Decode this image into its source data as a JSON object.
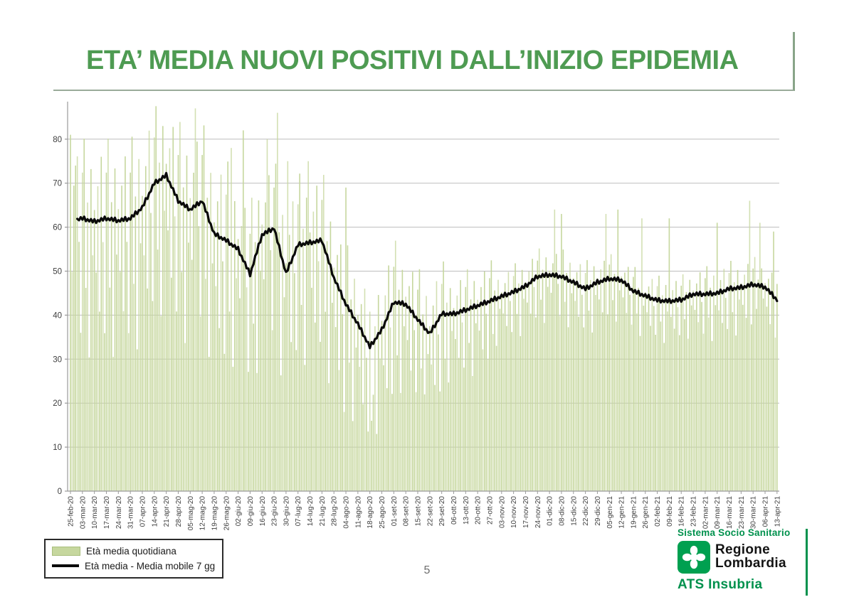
{
  "slide": {
    "title": "ETA’ MEDIA NUOVI POSITIVI DALL’INIZIO EPIDEMIA",
    "title_color": "#4e9b52",
    "page_number": "5"
  },
  "legend": {
    "items": [
      {
        "label": "Età media quotidiana",
        "swatch": "bar",
        "color": "#c6d79e"
      },
      {
        "label": "Età media - Media mobile 7 gg",
        "swatch": "line",
        "color": "#0a0a0a"
      }
    ]
  },
  "footer": {
    "sistema": "Sistema Socio Sanitario",
    "regione_line1": "Regione",
    "regione_line2": "Lombardia",
    "ats": "ATS Insubria",
    "brand_green": "#00914d"
  },
  "chart_data": {
    "type": "bar",
    "overlay": "line",
    "title": "",
    "xlabel": "",
    "ylabel": "",
    "ylim": [
      0,
      88
    ],
    "yticks": [
      0,
      10,
      20,
      30,
      40,
      50,
      60,
      70,
      80
    ],
    "grid": "horizontal",
    "legend_position": "bottom-left",
    "x_tick_interval_days": 7,
    "n_points": 414,
    "x_tick_labels": [
      "25-feb-20",
      "03-mar-20",
      "10-mar-20",
      "17-mar-20",
      "24-mar-20",
      "31-mar-20",
      "07-apr-20",
      "14-apr-20",
      "21-apr-20",
      "28-apr-20",
      "05-mag-20",
      "12-mag-20",
      "19-mag-20",
      "26-mag-20",
      "02-giu-20",
      "09-giu-20",
      "16-giu-20",
      "23-giu-20",
      "30-giu-20",
      "07-lug-20",
      "14-lug-20",
      "21-lug-20",
      "28-lug-20",
      "04-ago-20",
      "11-ago-20",
      "18-ago-20",
      "25-ago-20",
      "01-set-20",
      "08-set-20",
      "15-set-20",
      "22-set-20",
      "29-set-20",
      "06-ott-20",
      "13-ott-20",
      "20-ott-20",
      "27-ott-20",
      "03-nov-20",
      "10-nov-20",
      "17-nov-20",
      "24-nov-20",
      "01-dic-20",
      "08-dic-20",
      "15-dic-20",
      "22-dic-20",
      "29-dic-20",
      "05-gen-21",
      "12-gen-21",
      "19-gen-21",
      "26-gen-21",
      "02-feb-21",
      "09-feb-21",
      "16-feb-21",
      "23-feb-21",
      "02-mar-21",
      "09-mar-21",
      "16-mar-21",
      "23-mar-21",
      "30-mar-21",
      "06-apr-21",
      "13-apr-21"
    ],
    "series": [
      {
        "name": "Età media quotidiana",
        "type": "bar",
        "color": "#c6d79e",
        "note": "414 daily bars, tops scattered around the 7-day moving average; reconstructed from weekly envelope + spikes"
      },
      {
        "name": "Età media - Media mobile 7 gg",
        "type": "line",
        "color": "#0a0a0a",
        "weekly_values": [
          61.5,
          62.0,
          61.3,
          62.0,
          61.5,
          62.0,
          64.5,
          70.0,
          71.8,
          66.0,
          64.0,
          66.0,
          58.5,
          57.0,
          55.0,
          49.3,
          58.3,
          59.8,
          49.5,
          56.0,
          56.5,
          57.0,
          48.5,
          42.5,
          38.0,
          32.8,
          36.7,
          43.0,
          42.5,
          39.0,
          35.8,
          40.3,
          40.3,
          41.2,
          42.2,
          43.2,
          44.3,
          45.3,
          46.6,
          48.8,
          49.2,
          48.8,
          47.5,
          46.0,
          47.5,
          48.3,
          48.0,
          45.5,
          44.4,
          43.4,
          43.2,
          43.5,
          44.8,
          44.8,
          45.0,
          46.0,
          46.3,
          47.0,
          46.4,
          43.5
        ]
      }
    ],
    "bar_synthesis": {
      "noise_pattern": [
        2,
        -9,
        6,
        -16,
        11,
        -4,
        -20,
        8,
        14,
        -12,
        3,
        -24,
        9,
        -6
      ],
      "amplitude_weekly": [
        1.3,
        1.3,
        1.3,
        1.3,
        1.3,
        1.3,
        1.3,
        1.3,
        1.3,
        1.3,
        1.3,
        1.3,
        1.3,
        1.3,
        1.15,
        1.15,
        1.15,
        1.15,
        1.15,
        1.15,
        1.15,
        1.15,
        1.15,
        1.0,
        1.0,
        1.0,
        1.0,
        1.0,
        0.85,
        0.85,
        0.85,
        0.85,
        0.65,
        0.65,
        0.65,
        0.65,
        0.45,
        0.45,
        0.45,
        0.45,
        0.45,
        0.45,
        0.45,
        0.45,
        0.45,
        0.4,
        0.4,
        0.4,
        0.4,
        0.4,
        0.4,
        0.4,
        0.4,
        0.45,
        0.45,
        0.45,
        0.45,
        0.45,
        0.45,
        0.45
      ],
      "spikes": {
        "0": 81,
        "3": 74,
        "6": 36,
        "73": 87,
        "94": 78,
        "101": 82,
        "115": 80,
        "121": 86,
        "127": 75,
        "139": 75,
        "160": 18,
        "161": 69,
        "176": 16,
        "207": 22,
        "283": 64,
        "287": 63,
        "313": 63,
        "320": 64,
        "334": 62,
        "350": 62,
        "378": 61,
        "397": 66,
        "403": 61,
        "411": 59
      },
      "line_wiggle": [
        0.35,
        -0.3,
        0.5,
        -0.45,
        0.1,
        -0.3
      ],
      "min_value": 13
    },
    "axis_colors": {
      "axis": "#9a9a9a",
      "grid": "#bdbdbd",
      "tick_text": "#3d3d3d"
    }
  }
}
